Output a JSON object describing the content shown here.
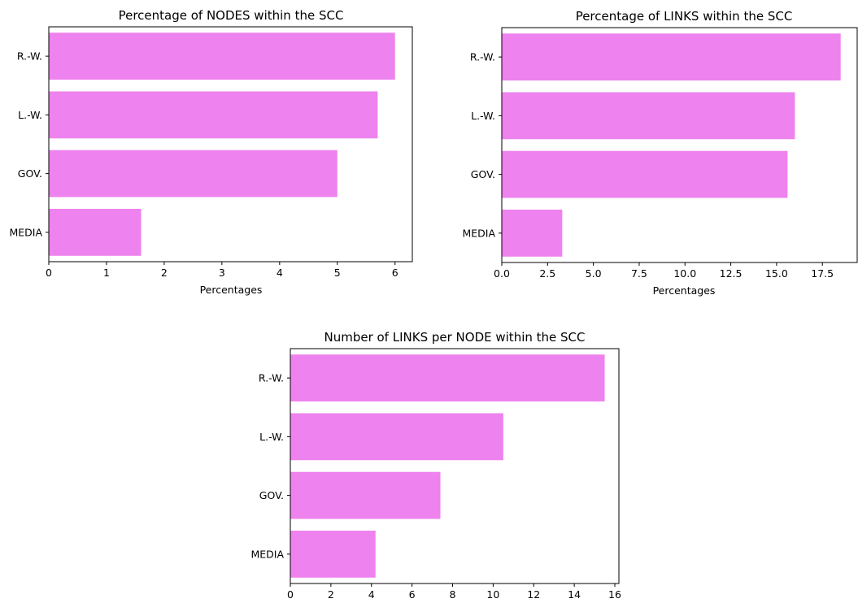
{
  "chart_data": [
    {
      "type": "bar",
      "orientation": "horizontal",
      "title": "Percentage of NODES within the SCC",
      "xlabel": "Percentages",
      "ylabel": "",
      "categories": [
        "R.-W.",
        "L.-W.",
        "GOV.",
        "MEDIA"
      ],
      "values": [
        6.0,
        5.7,
        5.0,
        1.6
      ],
      "xlim": [
        0,
        6.3
      ],
      "xticks": [
        0,
        1,
        2,
        3,
        4,
        5,
        6
      ],
      "xtick_labels": [
        "0",
        "1",
        "2",
        "3",
        "4",
        "5",
        "6"
      ],
      "bar_color": "#ee82ee",
      "grid": false
    },
    {
      "type": "bar",
      "orientation": "horizontal",
      "title": "Percentage of LINKS within the SCC",
      "xlabel": "Percentages",
      "ylabel": "",
      "categories": [
        "R.-W.",
        "L.-W.",
        "GOV.",
        "MEDIA"
      ],
      "values": [
        18.5,
        16.0,
        15.6,
        3.3
      ],
      "xlim": [
        0,
        19.4
      ],
      "xticks": [
        0,
        2.5,
        5,
        7.5,
        10,
        12.5,
        15,
        17.5
      ],
      "xtick_labels": [
        "0.0",
        "2.5",
        "5.0",
        "7.5",
        "10.0",
        "12.5",
        "15.0",
        "17.5"
      ],
      "bar_color": "#ee82ee",
      "grid": false
    },
    {
      "type": "bar",
      "orientation": "horizontal",
      "title": "Number of LINKS per NODE within the SCC",
      "xlabel": "",
      "ylabel": "",
      "categories": [
        "R.-W.",
        "L.-W.",
        "GOV.",
        "MEDIA"
      ],
      "values": [
        15.5,
        10.5,
        7.4,
        4.2
      ],
      "xlim": [
        0,
        16.2
      ],
      "xticks": [
        0,
        2,
        4,
        6,
        8,
        10,
        12,
        14,
        16
      ],
      "xtick_labels": [
        "0",
        "2",
        "4",
        "6",
        "8",
        "10",
        "12",
        "14",
        "16"
      ],
      "bar_color": "#ee82ee",
      "grid": false
    }
  ]
}
